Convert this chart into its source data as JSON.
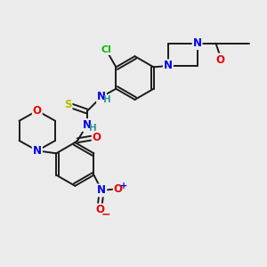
{
  "bg_color": "#ebebeb",
  "bond_color": "#1a1a1a",
  "bond_width": 1.4,
  "atom_colors": {
    "N": "#0000ee",
    "O": "#ee0000",
    "S": "#bbbb00",
    "Cl": "#00bb00",
    "C": "#1a1a1a",
    "H": "#339999"
  },
  "font_size": 8.5,
  "fig_width": 3.0,
  "fig_height": 3.0,
  "dpi": 100
}
